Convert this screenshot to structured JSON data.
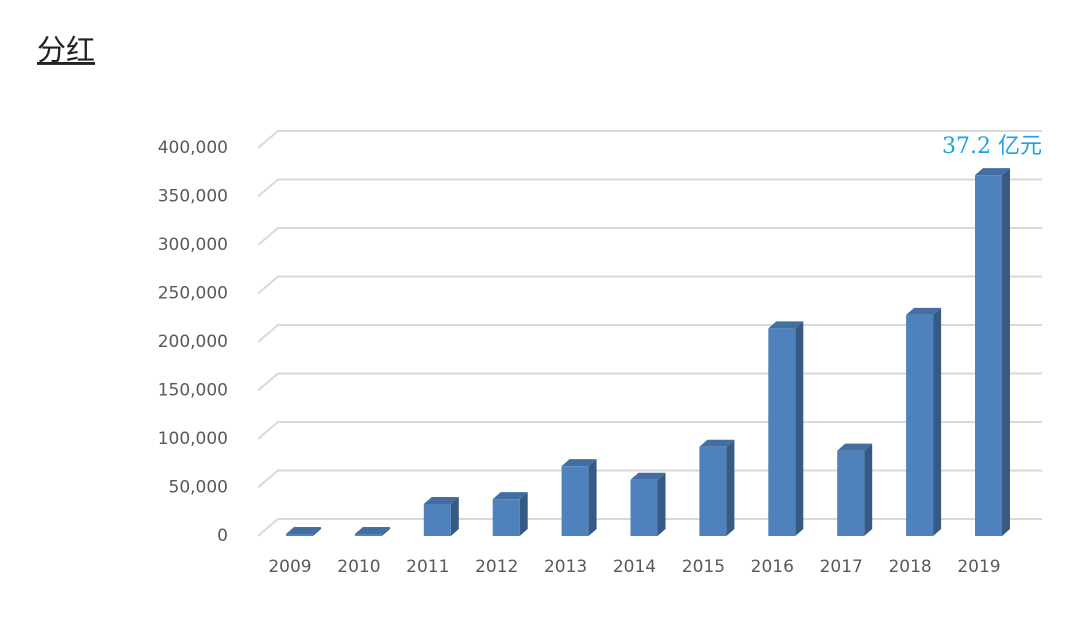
{
  "title": "分红",
  "chart_data": {
    "type": "bar3d",
    "categories": [
      "2009",
      "2010",
      "2011",
      "2012",
      "2013",
      "2014",
      "2015",
      "2016",
      "2017",
      "2018",
      "2019"
    ],
    "values": [
      2000,
      2000,
      33000,
      38000,
      72000,
      58000,
      92000,
      214000,
      88000,
      228000,
      372000
    ],
    "color": "#4f81bd",
    "ylim": [
      0,
      400000
    ],
    "yticks": [
      0,
      {
        "value": 50000,
        "label": "50,000"
      },
      {
        "value": 100000,
        "label": "100,000"
      },
      {
        "value": 150000,
        "label": "150,000"
      },
      {
        "value": 200000,
        "label": "200,000"
      },
      {
        "value": 250000,
        "label": "250,000"
      },
      {
        "value": 300000,
        "label": "300,000"
      },
      {
        "value": 350000,
        "label": "350,000"
      },
      {
        "value": 400000,
        "label": "400,000"
      }
    ],
    "grid": true,
    "annotation": "37.2 亿元",
    "annotation_color": "#1aa3e0"
  }
}
